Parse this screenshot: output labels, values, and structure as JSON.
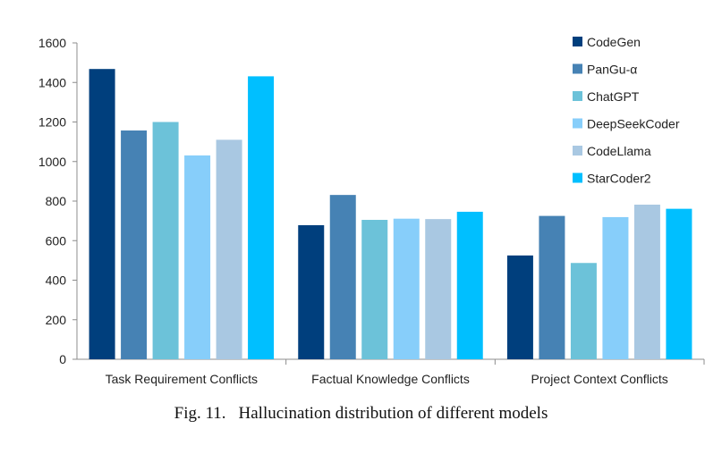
{
  "caption": {
    "number": "Fig. 11.",
    "text": "Hallucination distribution of different models"
  },
  "chart_data": {
    "type": "bar",
    "categories": [
      "Task Requirement Conflicts",
      "Factual Knowledge Conflicts",
      "Project Context Conflicts"
    ],
    "series": [
      {
        "name": "CodeGen",
        "color": "#003f7d",
        "values": [
          1468,
          678,
          525
        ]
      },
      {
        "name": "PanGu-α",
        "color": "#4682b4",
        "values": [
          1157,
          831,
          725
        ]
      },
      {
        "name": "ChatGPT",
        "color": "#6cc2d9",
        "values": [
          1200,
          705,
          487
        ]
      },
      {
        "name": "DeepSeekCoder",
        "color": "#87cefa",
        "values": [
          1031,
          711,
          719
        ]
      },
      {
        "name": "CodeLlama",
        "color": "#a9c8e2",
        "values": [
          1110,
          709,
          782
        ]
      },
      {
        "name": "StarCoder2",
        "color": "#00bfff",
        "values": [
          1431,
          746,
          761
        ]
      }
    ],
    "ylim": [
      0,
      1600
    ],
    "yticks": [
      0,
      200,
      400,
      600,
      800,
      1000,
      1200,
      1400,
      1600
    ],
    "grid": false,
    "legend": "top-right",
    "title": "",
    "xlabel": "",
    "ylabel": ""
  }
}
